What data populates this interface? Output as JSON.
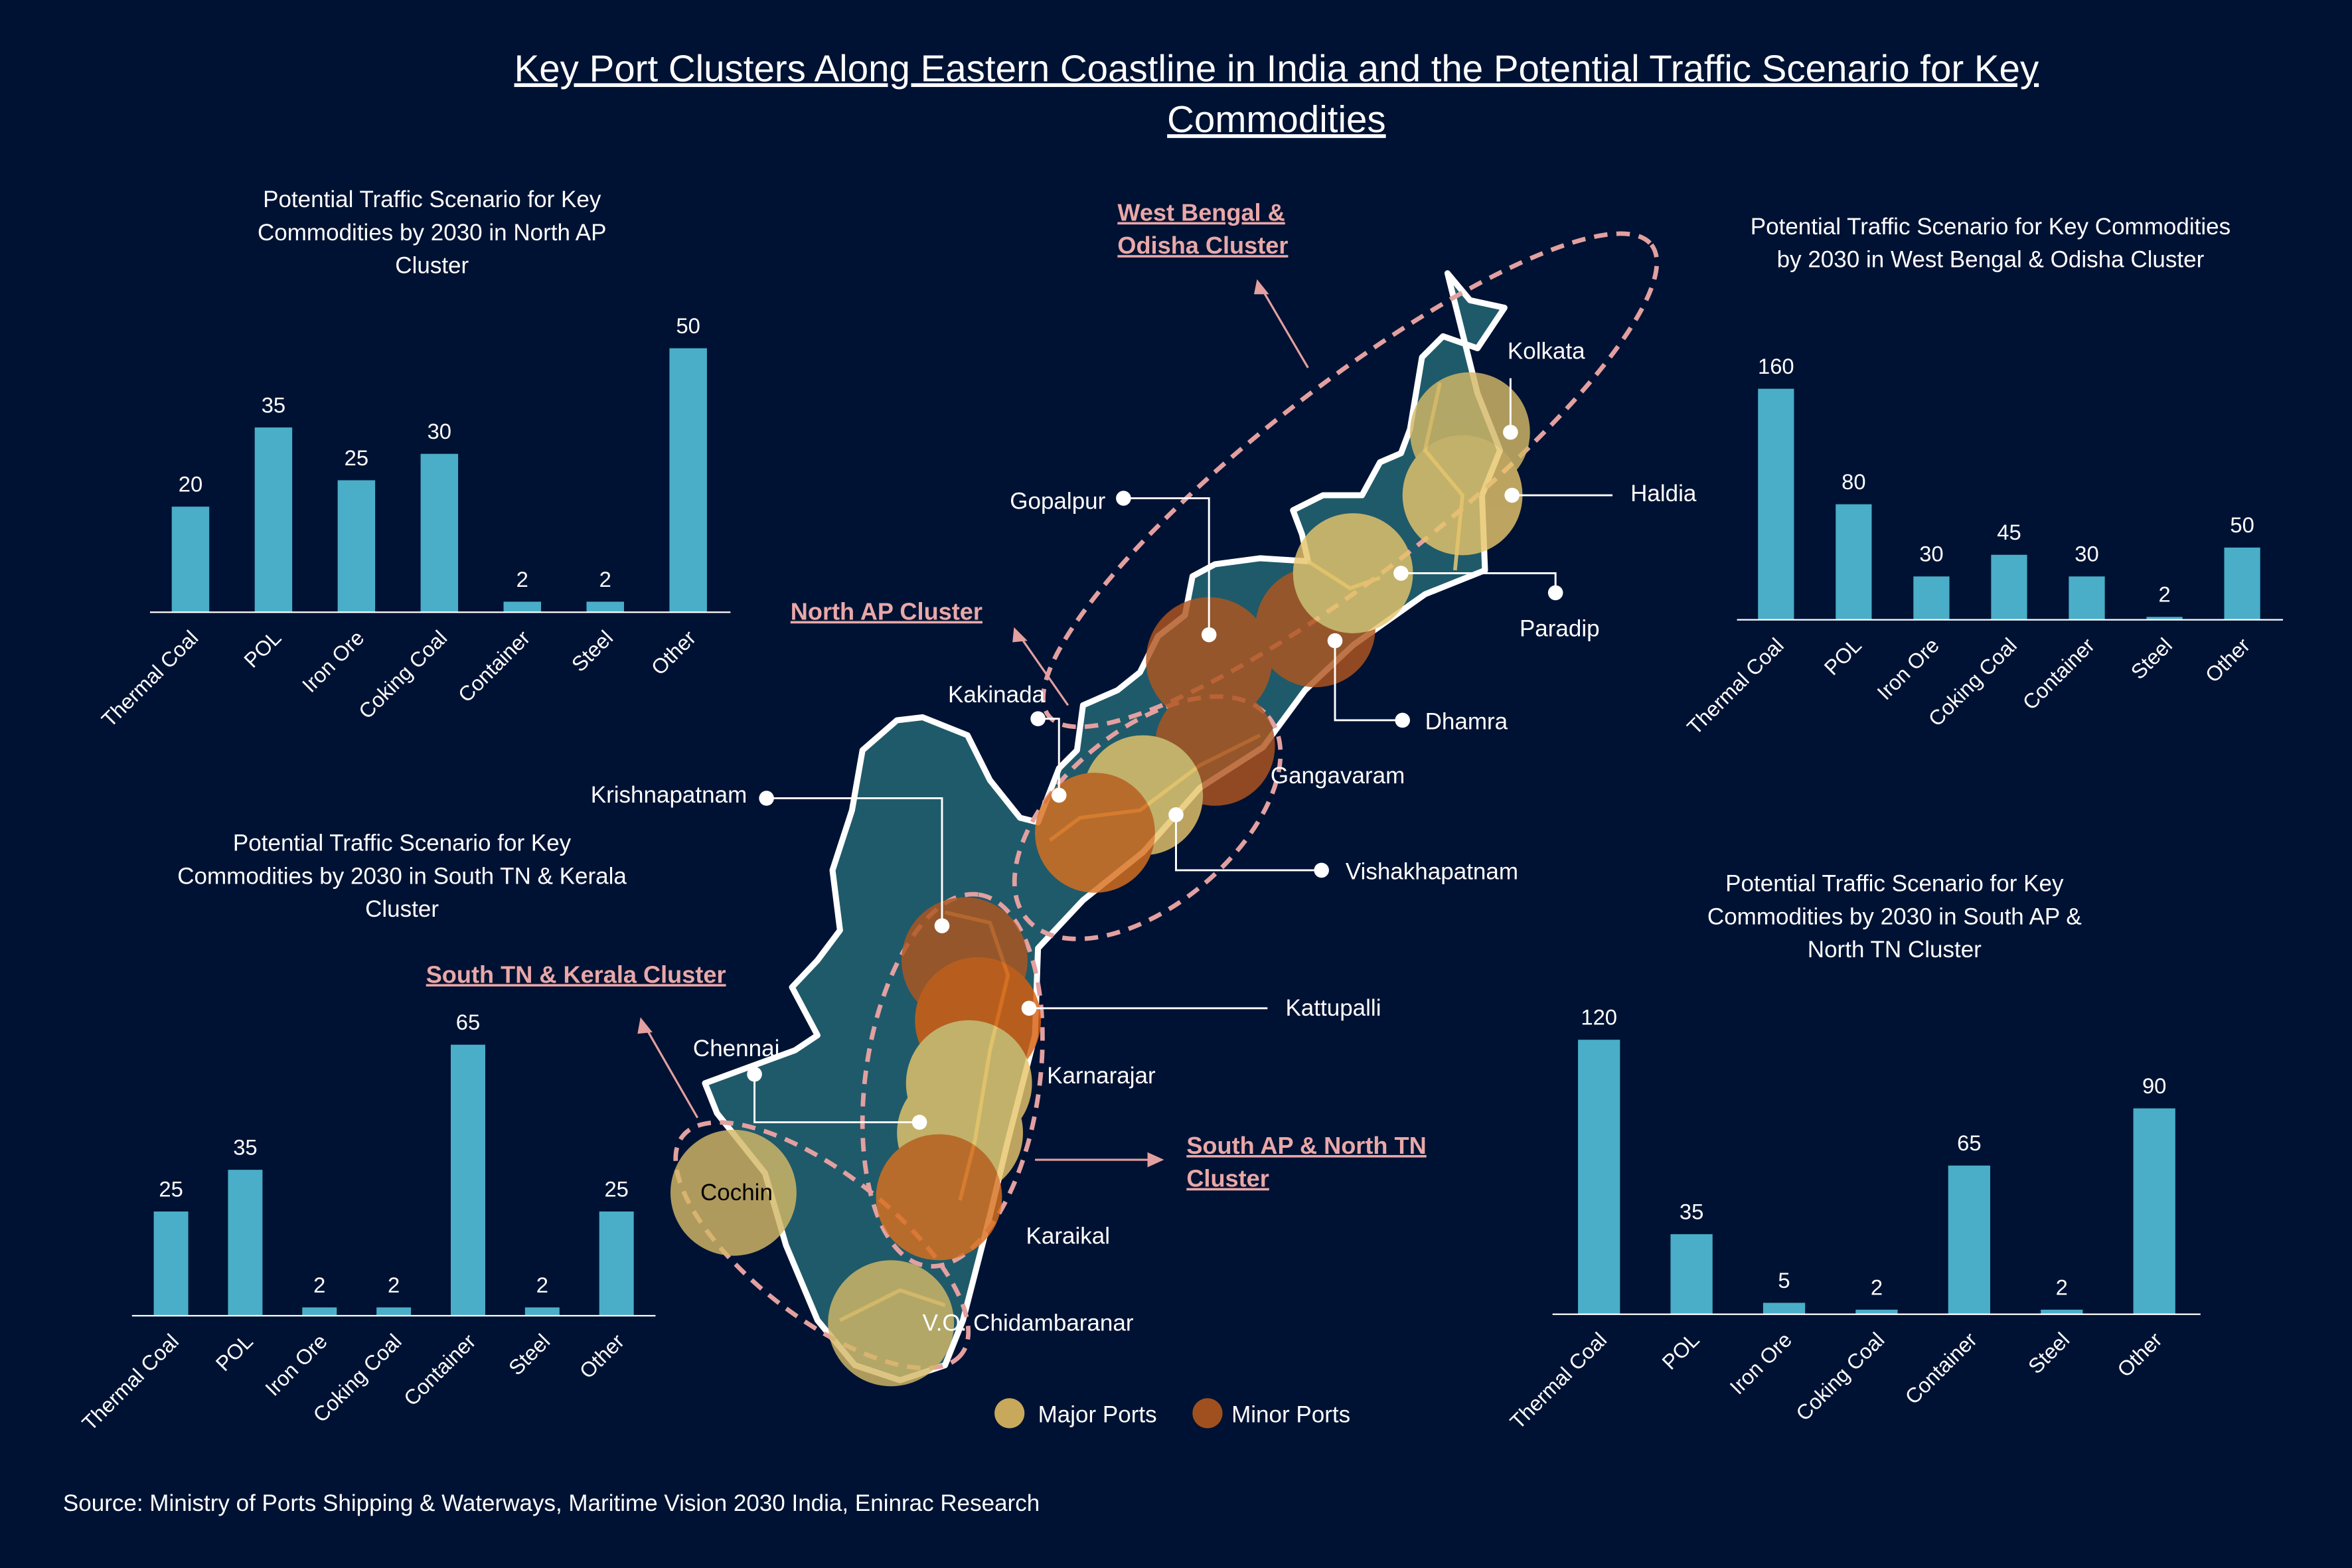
{
  "title": {
    "line1": "Key Port Clusters Along Eastern Coastline in India and the Potential Traffic Scenario for Key",
    "line2": "Commodities"
  },
  "clusters": {
    "west_bengal_odisha": [
      "West Bengal &",
      "Odisha Cluster"
    ],
    "north_ap": "North AP Cluster",
    "south_tn_kerala": "South TN & Kerala Cluster",
    "south_ap_north_tn": [
      "South AP & North TN",
      "Cluster"
    ]
  },
  "ports": {
    "kolkata": "Kolkata",
    "haldia": "Haldia",
    "paradip": "Paradip",
    "dhamra": "Dhamra",
    "gopalpur": "Gopalpur",
    "gangavaram": "Gangavaram",
    "vishakhapatnam": "Vishakhapatnam",
    "kakinada": "Kakinada",
    "krishnapatnam": "Krishnapatnam",
    "kattupalli": "Kattupalli",
    "karnarajar": "Karnarajar",
    "chennai": "Chennai",
    "karaikal": "Karaikal",
    "cochin": "Cochin",
    "vo_chidambaranar": "V.O. Chidambaranar"
  },
  "legend": {
    "major": "Major Ports",
    "minor": "Minor Ports"
  },
  "colors": {
    "background": "#001233",
    "bar": "#4aaec8",
    "map": "#1f5a6a",
    "major": "#d4b866",
    "minor": "#b0561f",
    "cluster": "#e3a0a0"
  },
  "source": "Source: Ministry of Ports Shipping & Waterways, Maritime Vision 2030 India, Eninrac Research",
  "chart_data": [
    {
      "type": "bar",
      "title": [
        "Potential Traffic Scenario for Key",
        "Commodities by 2030 in North AP",
        "Cluster"
      ],
      "categories": [
        "Thermal Coal",
        "POL",
        "Iron Ore",
        "Coking Coal",
        "Container",
        "Steel",
        "Other"
      ],
      "values": [
        20,
        35,
        25,
        30,
        2,
        2,
        50
      ]
    },
    {
      "type": "bar",
      "title": [
        "Potential Traffic Scenario for Key Commodities",
        "by 2030 in West Bengal & Odisha Cluster"
      ],
      "categories": [
        "Thermal Coal",
        "POL",
        "Iron Ore",
        "Coking Coal",
        "Container",
        "Steel",
        "Other"
      ],
      "values": [
        160,
        80,
        30,
        45,
        30,
        2,
        50
      ]
    },
    {
      "type": "bar",
      "title": [
        "Potential Traffic Scenario for Key",
        "Commodities by 2030 in South TN & Kerala",
        "Cluster"
      ],
      "categories": [
        "Thermal Coal",
        "POL",
        "Iron Ore",
        "Coking Coal",
        "Container",
        "Steel",
        "Other"
      ],
      "values": [
        25,
        35,
        2,
        2,
        65,
        2,
        25
      ]
    },
    {
      "type": "bar",
      "title": [
        "Potential Traffic Scenario for Key",
        "Commodities by 2030 in South AP &",
        "North TN Cluster"
      ],
      "categories": [
        "Thermal Coal",
        "POL",
        "Iron Ore",
        "Coking Coal",
        "Container",
        "Steel",
        "Other"
      ],
      "values": [
        120,
        35,
        5,
        2,
        65,
        2,
        90
      ]
    }
  ]
}
